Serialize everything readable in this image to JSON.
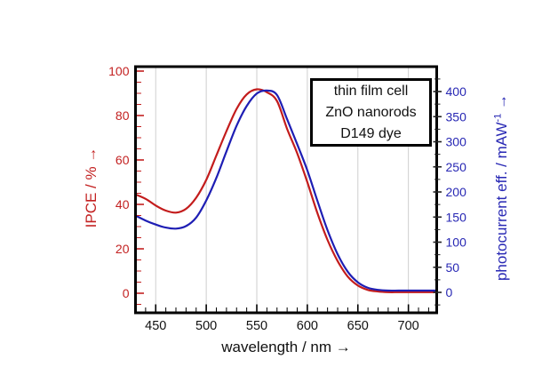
{
  "chart_data": {
    "type": "line",
    "title": "",
    "annotation_box": {
      "lines": [
        "thin film cell",
        "ZnO nanorods",
        "D149 dye"
      ]
    },
    "x_axis": {
      "label": "wavelength / nm →",
      "range": [
        430,
        728
      ],
      "major_ticks": [
        450,
        500,
        550,
        600,
        650,
        700
      ],
      "minor_step": 10,
      "color": "#111111"
    },
    "y_left_axis": {
      "label": "IPCE / % →",
      "range": [
        -8.8,
        102
      ],
      "major_ticks": [
        0,
        20,
        40,
        60,
        80,
        100
      ],
      "minor_step": 5,
      "color": "#c32121"
    },
    "y_right_axis": {
      "label_text": "photocurrent eff. / mAW",
      "label_sup": "-1",
      "label_arrow": " →",
      "range": [
        -40.7,
        449.6
      ],
      "major_ticks": [
        0,
        50,
        100,
        150,
        200,
        250,
        300,
        350,
        400
      ],
      "minor_step": 25,
      "color": "#2828b4",
      "tick_color": "#222222"
    },
    "grid": {
      "vertical": true,
      "horizontal": false,
      "color": "#cfcfcf"
    },
    "x": [
      430,
      440,
      450,
      460,
      470,
      480,
      490,
      500,
      510,
      520,
      530,
      540,
      550,
      560,
      570,
      580,
      590,
      600,
      610,
      620,
      630,
      640,
      650,
      660,
      670,
      680,
      690,
      700,
      710,
      720,
      730
    ],
    "series": [
      {
        "name": "IPCE",
        "axis": "left",
        "color": "#c31c1c",
        "values": [
          44.5,
          42.5,
          39.5,
          37.2,
          36.3,
          38,
          43,
          51,
          62,
          73,
          83,
          89.5,
          91.8,
          90.5,
          86.5,
          74,
          63,
          50,
          36,
          24,
          14.5,
          7.5,
          3.5,
          1.5,
          0.8,
          0.5,
          0.5,
          0.5,
          0.5,
          0.5,
          0.5
        ]
      },
      {
        "name": "photocurrent efficiency",
        "axis": "right",
        "color": "#1e1eb4",
        "values": [
          153,
          143,
          135,
          129,
          127,
          132,
          149,
          183,
          228,
          281,
          332,
          371,
          396,
          402,
          393,
          345,
          295,
          243,
          182,
          124,
          76,
          41,
          20,
          9,
          5,
          3.5,
          3.5,
          3.5,
          3.5,
          3.5,
          3.5
        ]
      }
    ]
  }
}
